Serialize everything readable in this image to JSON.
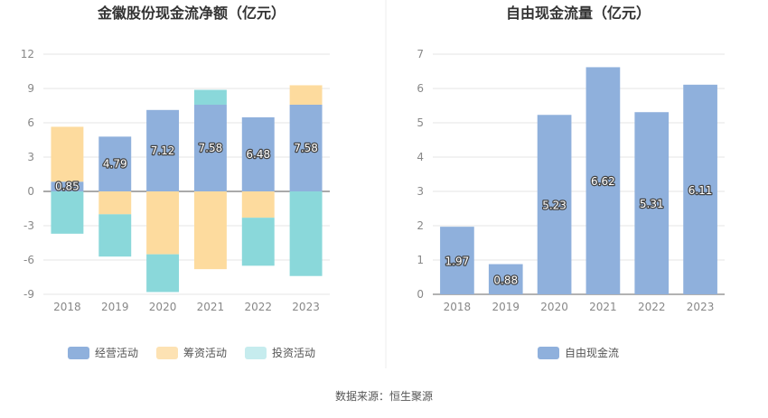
{
  "source_text": "数据来源：恒生聚源",
  "chart_data": [
    {
      "type": "bar",
      "stacked": true,
      "title": "金徽股份现金流净额（亿元）",
      "categories": [
        "2018",
        "2019",
        "2020",
        "2021",
        "2022",
        "2023"
      ],
      "yticks": [
        "12",
        "9",
        "6",
        "3",
        "0",
        "-3",
        "-6",
        "-9"
      ],
      "ylim": [
        -9,
        12
      ],
      "grid": true,
      "legend_position": "bottom",
      "series": [
        {
          "name": "经营活动",
          "color": "#8fb0dc",
          "values": [
            0.85,
            4.79,
            7.12,
            7.58,
            6.48,
            7.58
          ],
          "labels": [
            "0.85",
            "4.79",
            "7.12",
            "7.58",
            "6.48",
            "7.58"
          ]
        },
        {
          "name": "筹资活动",
          "color": "#fddb9e",
          "values": [
            4.8,
            -2.0,
            -5.5,
            -6.8,
            -2.3,
            1.7
          ]
        },
        {
          "name": "投资活动",
          "color": "#8ad8da",
          "values": [
            -3.7,
            -3.7,
            -3.3,
            1.3,
            -4.2,
            -7.4
          ]
        }
      ]
    },
    {
      "type": "bar",
      "title": "自由现金流量（亿元）",
      "categories": [
        "2018",
        "2019",
        "2020",
        "2021",
        "2022",
        "2023"
      ],
      "yticks": [
        "7",
        "6",
        "5",
        "4",
        "3",
        "2",
        "1",
        "0"
      ],
      "ylim": [
        0,
        7
      ],
      "grid": true,
      "legend_position": "bottom",
      "series": [
        {
          "name": "自由现金流",
          "color": "#8fb0dc",
          "values": [
            1.97,
            0.88,
            5.23,
            6.62,
            5.31,
            6.11
          ],
          "labels": [
            "1.97",
            "0.88",
            "5.23",
            "6.62",
            "5.31",
            "6.11"
          ]
        }
      ]
    }
  ]
}
